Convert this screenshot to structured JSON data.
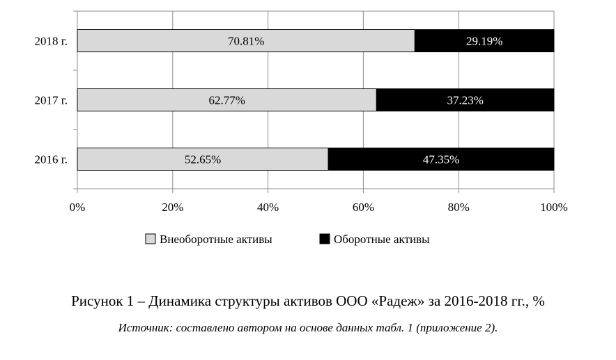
{
  "chart_data": {
    "type": "bar",
    "orientation": "horizontal",
    "stacked": true,
    "categories": [
      "2016 г.",
      "2017 г.",
      "2018 г."
    ],
    "series": [
      {
        "name": "Внеоборотные активы",
        "values": [
          52.65,
          62.77,
          70.81
        ],
        "labels": [
          "52.65%",
          "62.77%",
          "70.81%"
        ],
        "color": "#d9d9d9"
      },
      {
        "name": "Оборотные активы",
        "values": [
          47.35,
          37.23,
          29.19
        ],
        "labels": [
          "47.35%",
          "37.23%",
          "29.19%"
        ],
        "color": "#000000"
      }
    ],
    "xlim": [
      0,
      100
    ],
    "xticks": [
      0,
      20,
      40,
      60,
      80,
      100
    ],
    "xtick_labels": [
      "0%",
      "20%",
      "40%",
      "60%",
      "80%",
      "100%"
    ],
    "grid": "vertical",
    "legend_position": "bottom"
  },
  "caption": {
    "title": "Рисунок 1 – Динамика структуры активов ООО «Радеж» за 2016-2018 гг., %",
    "source": "Источник: составлено автором на основе данных табл. 1 (приложение 2)."
  }
}
